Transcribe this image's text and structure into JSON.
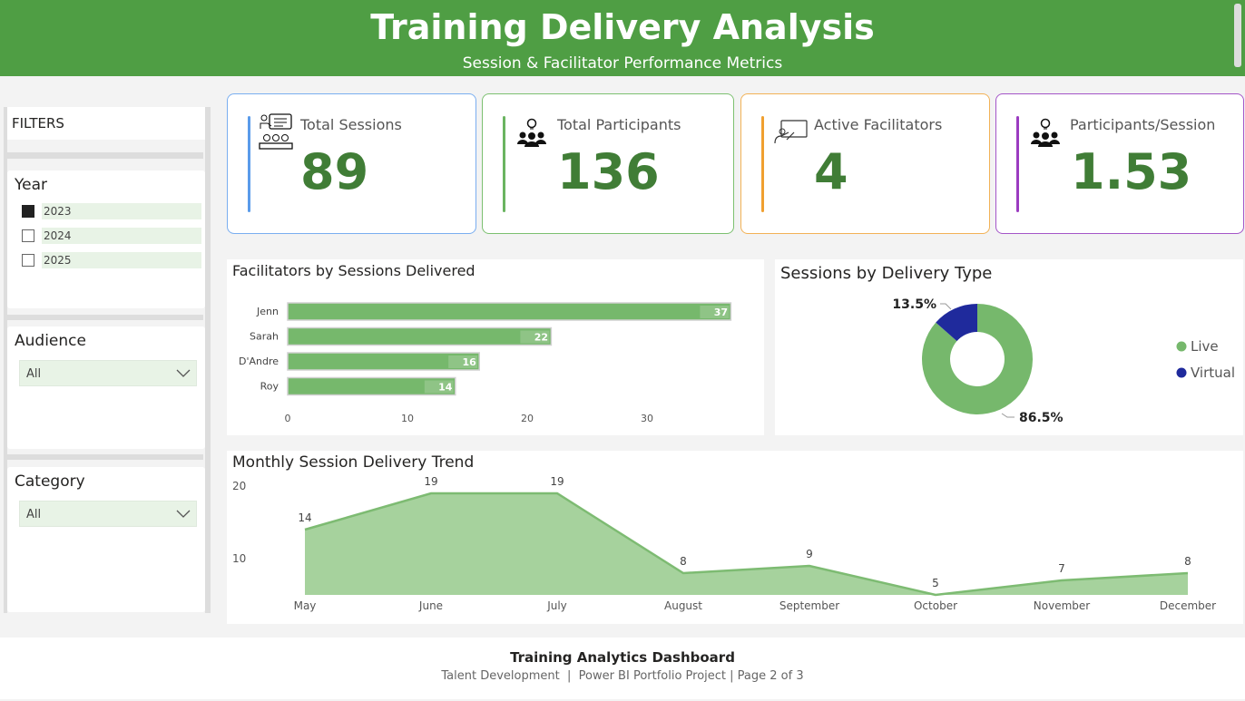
{
  "header": {
    "title": "Training Delivery Analysis",
    "subtitle": "Session & Facilitator Performance Metrics",
    "bg_color": "#4f9e44"
  },
  "filters": {
    "title": "FILTERS",
    "year": {
      "label": "Year",
      "options": [
        {
          "label": "2023",
          "checked": true
        },
        {
          "label": "2024",
          "checked": false
        },
        {
          "label": "2025",
          "checked": false
        }
      ]
    },
    "audience": {
      "label": "Audience",
      "value": "All"
    },
    "category": {
      "label": "Category",
      "value": "All"
    }
  },
  "kpis": [
    {
      "label": "Total Sessions",
      "value": "89",
      "icon": "classroom-presentation-icon",
      "accent": "#5a9bea"
    },
    {
      "label": "Total Participants",
      "value": "136",
      "icon": "team-idea-icon",
      "accent": "#6ab460"
    },
    {
      "label": "Active Facilitators",
      "value": "4",
      "icon": "teacher-whiteboard-icon",
      "accent": "#f0a030"
    },
    {
      "label": "Participants/Session",
      "value": "1.53",
      "icon": "team-idea-icon",
      "accent": "#9b3cc0"
    }
  ],
  "chart_data": [
    {
      "type": "bar",
      "orientation": "horizontal",
      "title": "Facilitators by Sessions Delivered",
      "categories": [
        "Jenn",
        "Sarah",
        "D'Andre",
        "Roy"
      ],
      "values": [
        37,
        22,
        16,
        14
      ],
      "xticks": [
        "0",
        "10",
        "20",
        "30"
      ],
      "xlim": [
        0,
        37
      ],
      "color": "#76b86c"
    },
    {
      "type": "pie",
      "donut": true,
      "title": "Sessions by Delivery Type",
      "categories": [
        "Live",
        "Virtual"
      ],
      "values": [
        86.5,
        13.5
      ],
      "labels": [
        "86.5%",
        "13.5%"
      ],
      "colors": [
        "#76b86c",
        "#1f2a9c"
      ],
      "legend": "right"
    },
    {
      "type": "area",
      "title": "Monthly Session Delivery Trend",
      "categories": [
        "May",
        "June",
        "July",
        "August",
        "September",
        "October",
        "November",
        "December"
      ],
      "values": [
        14,
        19,
        19,
        8,
        9,
        5,
        7,
        8
      ],
      "yticks": [
        "10",
        "20"
      ],
      "ylim": [
        5,
        20
      ],
      "color": "#76b86c"
    }
  ],
  "footer": {
    "title": "Training Analytics Dashboard",
    "subtitle": "Talent Development  |  Power BI Portfolio Project | Page 2 of 3"
  }
}
